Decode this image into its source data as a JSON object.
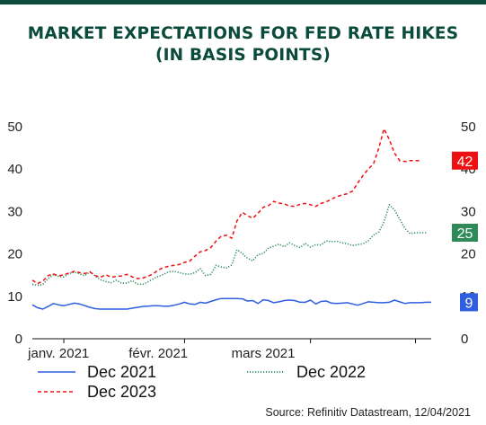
{
  "title": {
    "line1": "MARKET EXPECTATIONS FOR FED RATE HIKES",
    "line2": "(IN BASIS POINTS)"
  },
  "source": "Source: Refinitiv Datastream, 12/04/2021",
  "colors": {
    "header": "#0b4b3c",
    "dec2021": "#2f5fe0",
    "dec2022": "#2e8b57",
    "dec2023": "#ee1111"
  },
  "chart_data": {
    "type": "line",
    "ylim": [
      0,
      50
    ],
    "yticks": [
      0,
      10,
      20,
      30,
      40,
      50
    ],
    "xlabels": [
      {
        "label": "janv. 2021",
        "index": 5
      },
      {
        "label": "févr. 2021",
        "index": 24
      },
      {
        "label": "mars 2021",
        "index": 44
      }
    ],
    "end_labels": [
      {
        "series": "Dec 2023",
        "value": "42"
      },
      {
        "series": "Dec 2022",
        "value": "25"
      },
      {
        "series": "Dec 2021",
        "value": "9"
      }
    ],
    "series": [
      {
        "name": "Dec 2021",
        "style": "solid",
        "values": [
          8,
          7.3,
          7,
          7.6,
          8.3,
          8,
          7.8,
          8.1,
          8.4,
          8.2,
          7.8,
          7.4,
          7.1,
          7,
          7,
          7,
          7,
          7,
          7,
          7.2,
          7.4,
          7.6,
          7.7,
          7.8,
          7.8,
          7.7,
          7.7,
          7.9,
          8.2,
          8.6,
          8.2,
          8.1,
          8.6,
          8.4,
          8.8,
          9.2,
          9.5,
          9.5,
          9.5,
          9.5,
          9.4,
          8.9,
          9,
          8.3,
          9.2,
          9,
          8.5,
          8.7,
          9,
          9.1,
          9,
          8.6,
          8.6,
          9.1,
          8.2,
          8.8,
          8.9,
          8.4,
          8.3,
          8.4,
          8.5,
          8.2,
          7.9,
          8.3,
          8.7,
          8.6,
          8.5,
          8.5,
          8.6,
          9.1,
          8.7,
          8.3,
          8.5,
          8.5,
          8.5,
          8.6,
          8.6
        ]
      },
      {
        "name": "Dec 2022",
        "style": "dotted",
        "values": [
          12.8,
          12.6,
          12.8,
          14.2,
          15.1,
          14.7,
          14.6,
          15.4,
          15.7,
          15.3,
          14.9,
          15.8,
          14.8,
          13.9,
          13.5,
          13.2,
          13.8,
          13.1,
          13.1,
          13.7,
          12.9,
          12.8,
          13.4,
          14.1,
          14.7,
          15.2,
          15.8,
          15.9,
          15.6,
          15.3,
          15.2,
          15.6,
          16.5,
          14.9,
          15.2,
          17.3,
          16.9,
          16.7,
          17.4,
          21,
          20.1,
          19,
          18.4,
          19.8,
          20.1,
          21.4,
          21.8,
          22.3,
          21.7,
          22.6,
          22,
          21.5,
          22.5,
          21.6,
          22.2,
          22.1,
          23.1,
          22.9,
          23,
          22.6,
          22.4,
          22,
          22.2,
          22.4,
          23.1,
          24.4,
          25.2,
          27.5,
          31.6,
          30.4,
          28.2,
          26,
          24.8,
          25,
          25,
          25
        ]
      },
      {
        "name": "Dec 2023",
        "style": "dashed",
        "values": [
          13.8,
          13,
          13.6,
          14.9,
          15.3,
          14.8,
          15.1,
          15.5,
          15.9,
          15.6,
          15.4,
          15.7,
          14.9,
          14.5,
          15.1,
          14.5,
          14.7,
          14.8,
          15.2,
          14.6,
          14.2,
          14.3,
          14.7,
          15.3,
          16.2,
          16.8,
          17.1,
          17.3,
          17.5,
          18,
          18.3,
          19.5,
          20.5,
          20.8,
          21.5,
          23,
          24.2,
          24.4,
          23.7,
          27.8,
          29.8,
          29,
          28.4,
          29.6,
          31,
          31.4,
          32.4,
          32,
          31.8,
          31.3,
          31.2,
          31.7,
          31.9,
          31.6,
          31.2,
          31.9,
          32.3,
          32.9,
          33.5,
          33.9,
          34.2,
          34.8,
          36.7,
          38.5,
          40,
          41.2,
          44.9,
          49.5,
          47,
          43.8,
          42,
          41.8,
          42,
          42,
          42
        ]
      }
    ]
  },
  "legend": [
    {
      "label": "Dec 2021"
    },
    {
      "label": "Dec 2022"
    },
    {
      "label": "Dec 2023"
    }
  ]
}
